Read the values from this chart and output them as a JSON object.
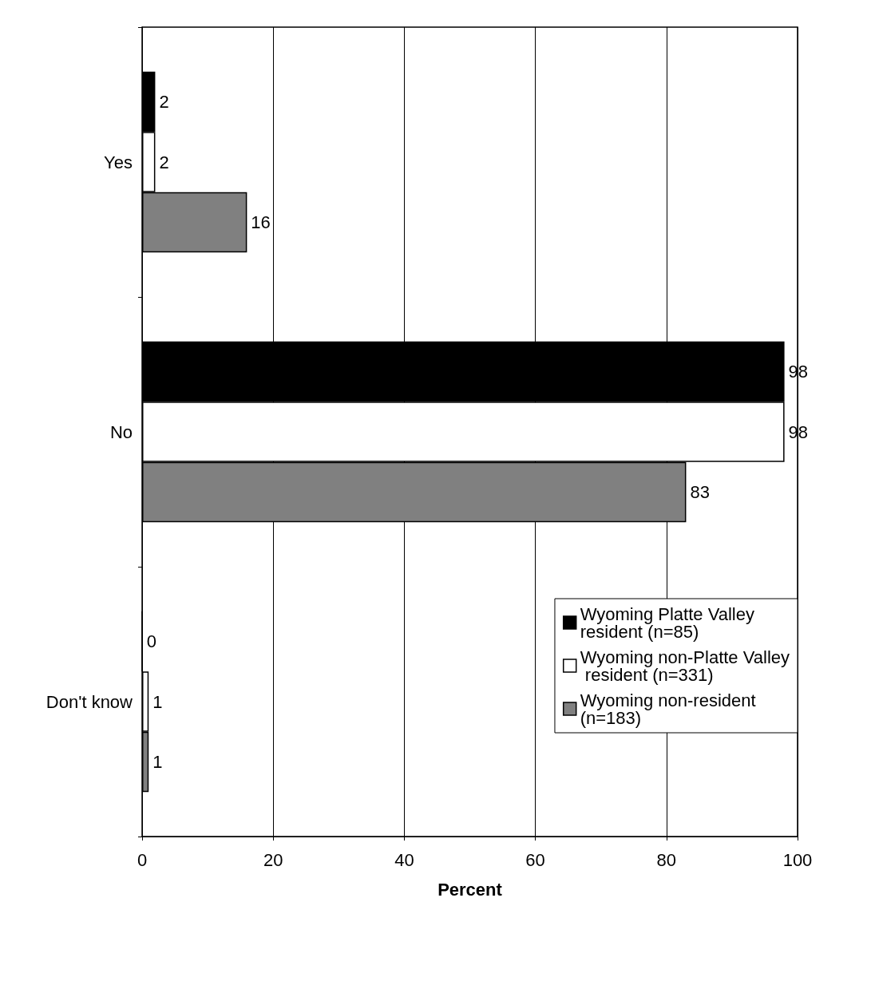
{
  "chart_data": {
    "type": "bar",
    "orientation": "horizontal",
    "xlabel": "Percent",
    "categories": [
      "Yes",
      "No",
      "Don't know"
    ],
    "series": [
      {
        "name": "Wyoming Platte Valley resident (n=85)",
        "color": "#000000",
        "values": [
          2,
          98,
          0
        ]
      },
      {
        "name": "Wyoming non-Platte Valley resident (n=331)",
        "color": "#ffffff",
        "values": [
          2,
          98,
          1
        ]
      },
      {
        "name": "Wyoming non-resident (n=183)",
        "color": "#808080",
        "values": [
          16,
          83,
          1
        ]
      }
    ],
    "xlim": [
      0,
      100
    ],
    "xticks": [
      0,
      20,
      40,
      60,
      80,
      100
    ],
    "grid": "x",
    "legend": "bottom right",
    "data_labels": true
  }
}
